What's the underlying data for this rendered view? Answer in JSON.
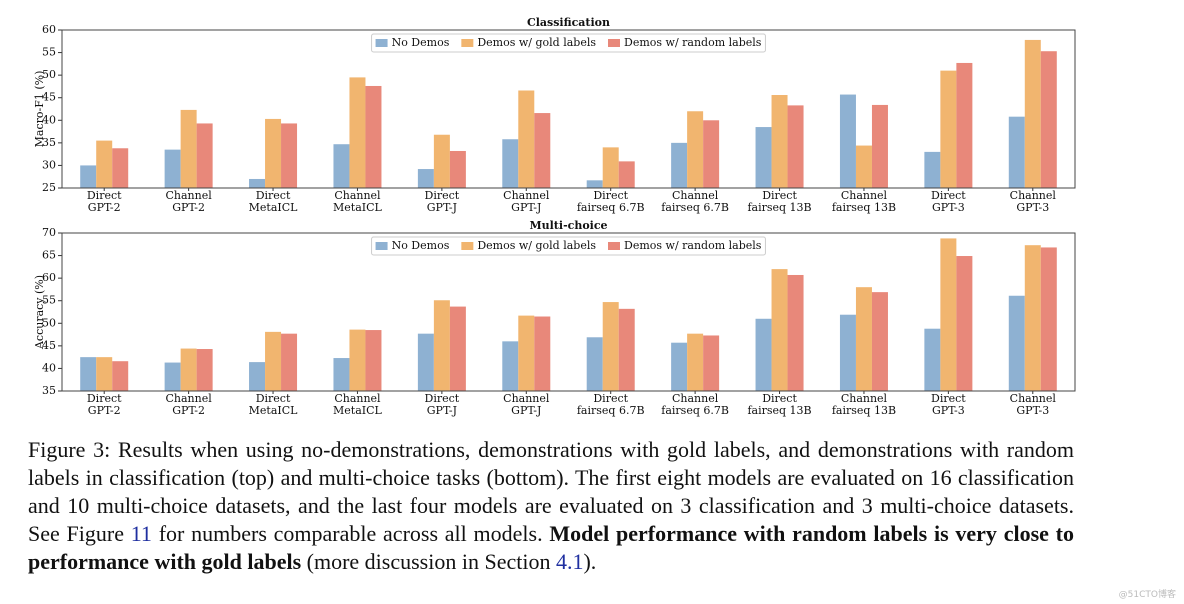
{
  "chart_data": [
    {
      "type": "bar",
      "title": "Classification",
      "ylabel": "Macro-F1 (%)",
      "categories": [
        [
          "Direct",
          "GPT-2"
        ],
        [
          "Channel",
          "GPT-2"
        ],
        [
          "Direct",
          "MetaICL"
        ],
        [
          "Channel",
          "MetaICL"
        ],
        [
          "Direct",
          "GPT-J"
        ],
        [
          "Channel",
          "GPT-J"
        ],
        [
          "Direct",
          "fairseq 6.7B"
        ],
        [
          "Channel",
          "fairseq 6.7B"
        ],
        [
          "Direct",
          "fairseq 13B"
        ],
        [
          "Channel",
          "fairseq 13B"
        ],
        [
          "Direct",
          "GPT-3"
        ],
        [
          "Channel",
          "GPT-3"
        ]
      ],
      "series": [
        {
          "name": "No Demos",
          "color": "#8eb1d2",
          "values": [
            30,
            33.5,
            27,
            34.7,
            29.2,
            35.8,
            26.7,
            35,
            38.5,
            45.7,
            33,
            40.8
          ]
        },
        {
          "name": "Demos w/ gold labels",
          "color": "#f1b56f",
          "values": [
            35.5,
            42.3,
            40.3,
            49.5,
            36.8,
            46.6,
            34,
            42,
            45.6,
            34.4,
            51,
            57.8
          ]
        },
        {
          "name": "Demos w/ random labels",
          "color": "#e8887a",
          "values": [
            33.8,
            39.3,
            39.3,
            47.6,
            33.2,
            41.6,
            30.9,
            40,
            43.3,
            43.4,
            52.7,
            55.3
          ]
        }
      ],
      "ylim": [
        25,
        60
      ],
      "yticks": [
        25,
        30,
        35,
        40,
        45,
        50,
        55,
        60
      ],
      "legend": "upper center"
    },
    {
      "type": "bar",
      "title": "Multi-choice",
      "ylabel": "Accuracy (%)",
      "categories": [
        [
          "Direct",
          "GPT-2"
        ],
        [
          "Channel",
          "GPT-2"
        ],
        [
          "Direct",
          "MetaICL"
        ],
        [
          "Channel",
          "MetaICL"
        ],
        [
          "Direct",
          "GPT-J"
        ],
        [
          "Channel",
          "GPT-J"
        ],
        [
          "Direct",
          "fairseq 6.7B"
        ],
        [
          "Channel",
          "fairseq 6.7B"
        ],
        [
          "Direct",
          "fairseq 13B"
        ],
        [
          "Channel",
          "fairseq 13B"
        ],
        [
          "Direct",
          "GPT-3"
        ],
        [
          "Channel",
          "GPT-3"
        ]
      ],
      "series": [
        {
          "name": "No Demos",
          "color": "#8eb1d2",
          "values": [
            42.5,
            41.3,
            41.4,
            42.3,
            47.7,
            46,
            46.9,
            45.7,
            51,
            51.9,
            48.8,
            56.1
          ]
        },
        {
          "name": "Demos w/ gold labels",
          "color": "#f1b56f",
          "values": [
            42.5,
            44.4,
            48.1,
            48.6,
            55.1,
            51.7,
            54.7,
            47.7,
            62,
            58,
            68.8,
            67.3
          ]
        },
        {
          "name": "Demos w/ random labels",
          "color": "#e8887a",
          "values": [
            41.6,
            44.3,
            47.7,
            48.5,
            53.7,
            51.5,
            53.2,
            47.3,
            60.7,
            56.9,
            64.9,
            66.8
          ]
        }
      ],
      "ylim": [
        35,
        70
      ],
      "yticks": [
        35,
        40,
        45,
        50,
        55,
        60,
        65,
        70
      ],
      "legend": "upper center"
    }
  ],
  "caption": [
    "Figure 3: Results when using no-demonstrations, demonstrations with gold labels, and demonstrations with random labels in classification (top) and multi-choice tasks (bottom). The first eight models are evaluated on 16 classification and 10 multi-choice datasets, and the last four models are evaluated on 3 classification and 3 multi-choice datasets. See Figure ",
    "11",
    " for numbers comparable across all models. ",
    "Model performance with random labels is very close to performance with gold labels",
    " (more discussion in Section ",
    "4.1",
    ")."
  ],
  "watermark": "@51CTO博客"
}
